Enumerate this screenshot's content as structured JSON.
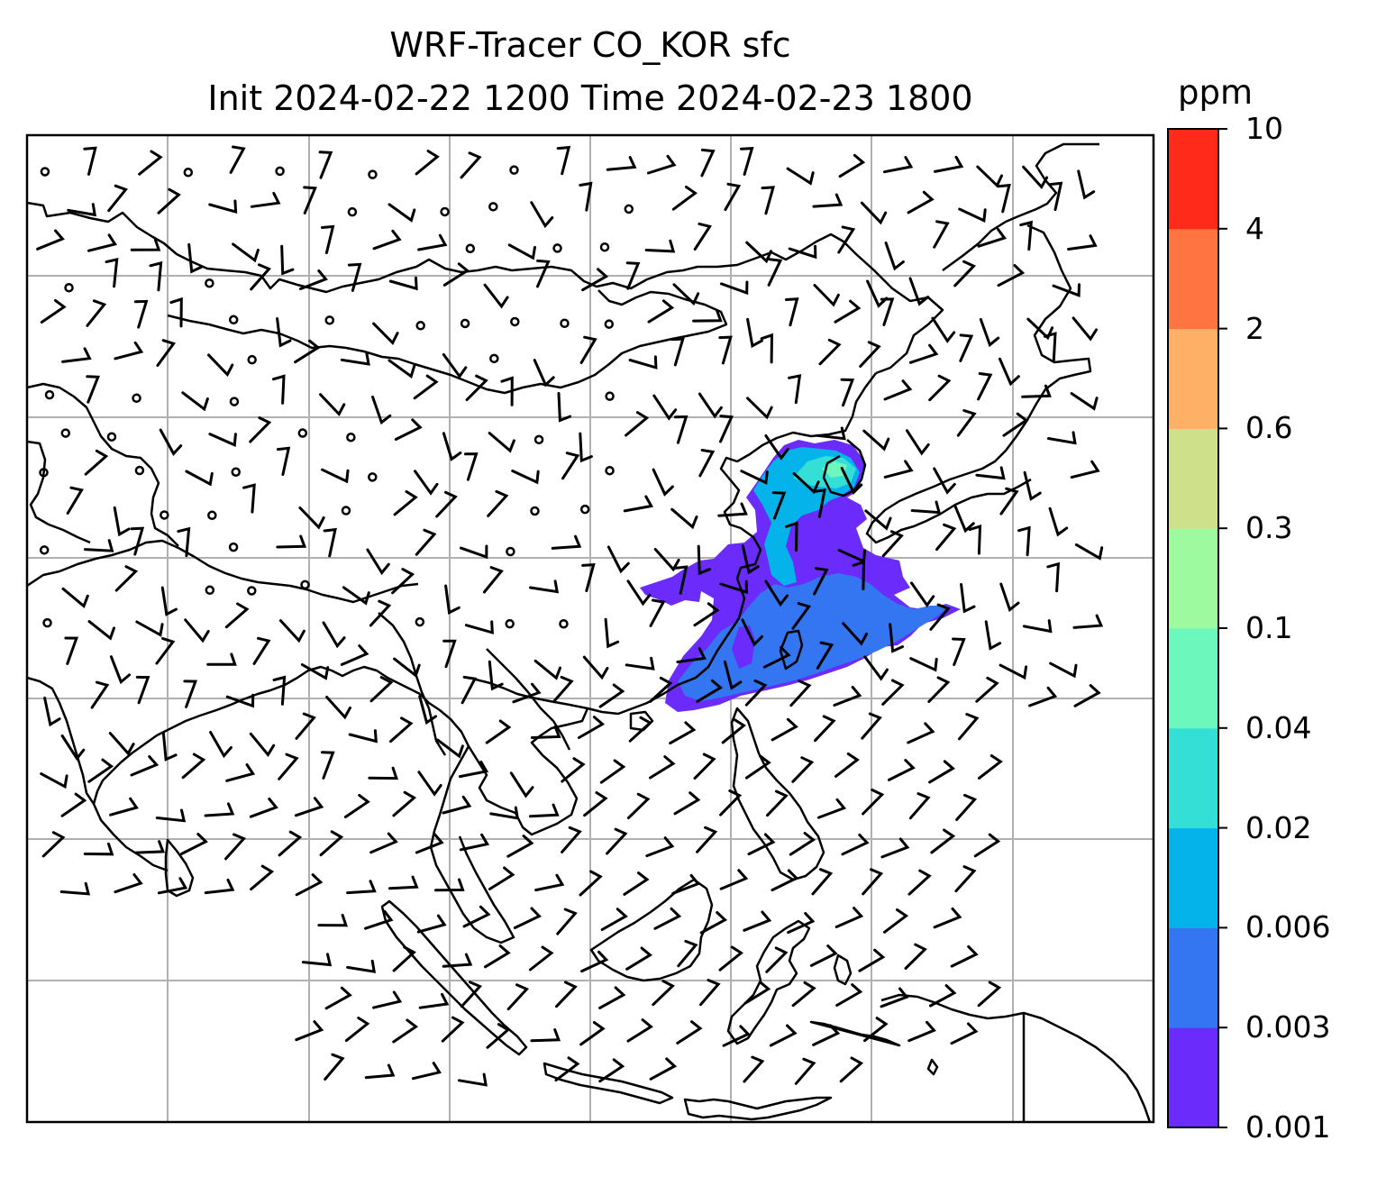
{
  "title": "WRF-Tracer CO_KOR sfc",
  "subtitle": "Init 2024-02-22 1200 Time 2024-02-23 1800",
  "colorbar": {
    "units": "ppm",
    "levels": [
      "0.001",
      "0.003",
      "0.006",
      "0.02",
      "0.04",
      "0.1",
      "0.3",
      "0.6",
      "2",
      "4",
      "10"
    ],
    "colors": [
      "#6a2bfb",
      "#3475f2",
      "#05b3eb",
      "#34e0d5",
      "#6cf8bd",
      "#9dfa9e",
      "#cfe08b",
      "#fdb066",
      "#ff7440",
      "#ff2a1a"
    ]
  },
  "map": {
    "region": "East and Southeast Asia",
    "coastline_color": "#000000",
    "gridline_color": "#b0b0b0",
    "wind_barb_color": "#000000",
    "tracer_plume_colors": [
      "#6a2bfb",
      "#3475f2",
      "#05b3eb",
      "#34e0d5",
      "#6cf8bd"
    ]
  }
}
